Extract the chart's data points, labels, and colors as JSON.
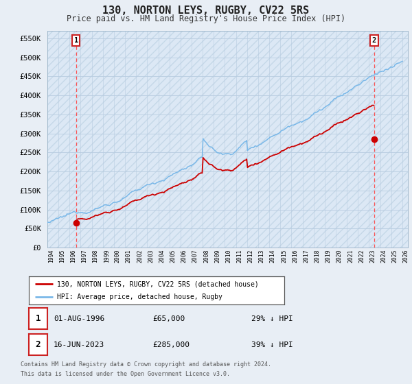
{
  "title": "130, NORTON LEYS, RUGBY, CV22 5RS",
  "subtitle": "Price paid vs. HM Land Registry's House Price Index (HPI)",
  "ylabel_ticks": [
    "£0",
    "£50K",
    "£100K",
    "£150K",
    "£200K",
    "£250K",
    "£300K",
    "£350K",
    "£400K",
    "£450K",
    "£500K",
    "£550K"
  ],
  "ytick_values": [
    0,
    50000,
    100000,
    150000,
    200000,
    250000,
    300000,
    350000,
    400000,
    450000,
    500000,
    550000
  ],
  "ylim": [
    0,
    570000
  ],
  "xlim_start": 1994.0,
  "xlim_end": 2026.5,
  "hpi_color": "#7ab8e8",
  "price_color": "#cc0000",
  "dashed_color": "#ff4444",
  "background_color": "#e8eef5",
  "plot_bg_color": "#dce8f5",
  "grid_color": "#b8cce0",
  "transaction1_x": 1996.58,
  "transaction1_y": 65000,
  "transaction1_label": "1",
  "transaction1_date": "01-AUG-1996",
  "transaction1_price": "£65,000",
  "transaction1_hpi": "29% ↓ HPI",
  "transaction2_x": 2023.46,
  "transaction2_y": 285000,
  "transaction2_label": "2",
  "transaction2_date": "16-JUN-2023",
  "transaction2_price": "£285,000",
  "transaction2_hpi": "39% ↓ HPI",
  "legend_line1": "130, NORTON LEYS, RUGBY, CV22 5RS (detached house)",
  "legend_line2": "HPI: Average price, detached house, Rugby",
  "footer1": "Contains HM Land Registry data © Crown copyright and database right 2024.",
  "footer2": "This data is licensed under the Open Government Licence v3.0."
}
